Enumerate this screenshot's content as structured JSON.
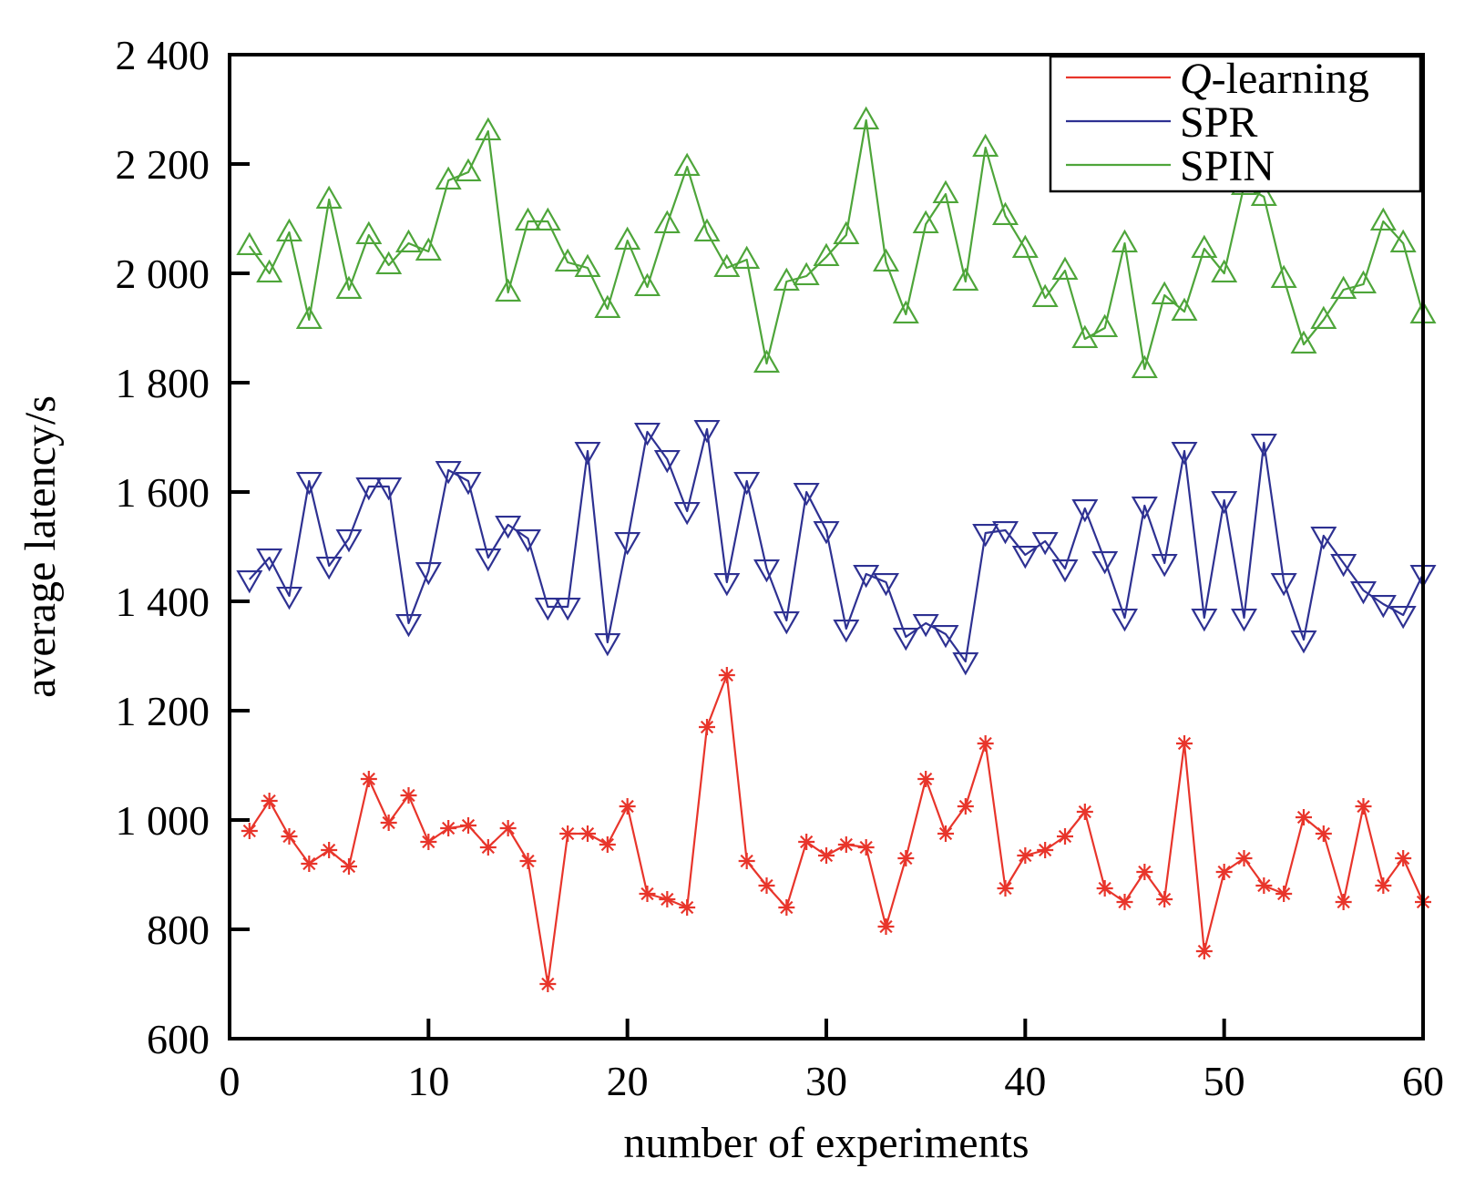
{
  "chart_data": {
    "type": "line",
    "title": "",
    "xlabel": "number of experiments",
    "ylabel": "average latency/s",
    "xlim": [
      0,
      60
    ],
    "ylim": [
      600,
      2400
    ],
    "xticks": [
      0,
      10,
      20,
      30,
      40,
      50,
      60
    ],
    "yticks": [
      600,
      800,
      1000,
      1200,
      1400,
      1600,
      1800,
      2000,
      2200,
      2400
    ],
    "xtick_labels": [
      "0",
      "10",
      "20",
      "30",
      "40",
      "50",
      "60"
    ],
    "ytick_labels": [
      "600",
      "800",
      "1 000",
      "1 200",
      "1 400",
      "1 600",
      "1 800",
      "2 000",
      "2 200",
      "2 400"
    ],
    "grid": false,
    "legend": {
      "position": "top-right",
      "box": true
    },
    "x": [
      1,
      2,
      3,
      4,
      5,
      6,
      7,
      8,
      9,
      10,
      11,
      12,
      13,
      14,
      15,
      16,
      17,
      18,
      19,
      20,
      21,
      22,
      23,
      24,
      25,
      26,
      27,
      28,
      29,
      30,
      31,
      32,
      33,
      34,
      35,
      36,
      37,
      38,
      39,
      40,
      41,
      42,
      43,
      44,
      45,
      46,
      47,
      48,
      49,
      50,
      51,
      52,
      53,
      54,
      55,
      56,
      57,
      58,
      59,
      60
    ],
    "series": [
      {
        "name": "Q-learning",
        "name_italic": "Q",
        "name_rest": "-learning",
        "color": "#e8352b",
        "marker": "asterisk",
        "values": [
          980,
          1035,
          970,
          920,
          945,
          915,
          1075,
          995,
          1045,
          960,
          985,
          990,
          950,
          985,
          925,
          700,
          975,
          975,
          955,
          1025,
          865,
          855,
          840,
          1170,
          1265,
          925,
          880,
          840,
          960,
          935,
          955,
          950,
          805,
          930,
          1075,
          975,
          1025,
          1140,
          875,
          935,
          945,
          970,
          1015,
          875,
          850,
          905,
          855,
          1140,
          760,
          905,
          930,
          880,
          865,
          1005,
          975,
          850,
          1025,
          880,
          930,
          850
        ]
      },
      {
        "name": "SPR",
        "color": "#2e3192",
        "marker": "triangle-down",
        "values": [
          1440,
          1480,
          1410,
          1620,
          1465,
          1515,
          1610,
          1610,
          1360,
          1455,
          1640,
          1620,
          1480,
          1540,
          1515,
          1390,
          1390,
          1675,
          1325,
          1510,
          1710,
          1660,
          1565,
          1715,
          1435,
          1620,
          1460,
          1365,
          1600,
          1530,
          1350,
          1450,
          1435,
          1335,
          1360,
          1340,
          1290,
          1525,
          1530,
          1485,
          1510,
          1460,
          1570,
          1475,
          1370,
          1575,
          1470,
          1675,
          1370,
          1585,
          1370,
          1690,
          1435,
          1330,
          1520,
          1470,
          1420,
          1395,
          1375,
          1450
        ]
      },
      {
        "name": "SPIN",
        "color": "#4ea53a",
        "marker": "triangle-up",
        "values": [
          2050,
          2000,
          2075,
          1915,
          2135,
          1970,
          2070,
          2015,
          2055,
          2040,
          2170,
          2185,
          2260,
          1965,
          2095,
          2095,
          2020,
          2010,
          1935,
          2060,
          1975,
          2090,
          2195,
          2075,
          2010,
          2025,
          1835,
          1985,
          1995,
          2030,
          2070,
          2280,
          2020,
          1925,
          2090,
          2145,
          1985,
          2230,
          2105,
          2045,
          1955,
          2005,
          1880,
          1900,
          2055,
          1825,
          1960,
          1930,
          2045,
          2000,
          2160,
          2140,
          1990,
          1870,
          1915,
          1970,
          1980,
          2095,
          2055,
          1925
        ]
      }
    ]
  }
}
